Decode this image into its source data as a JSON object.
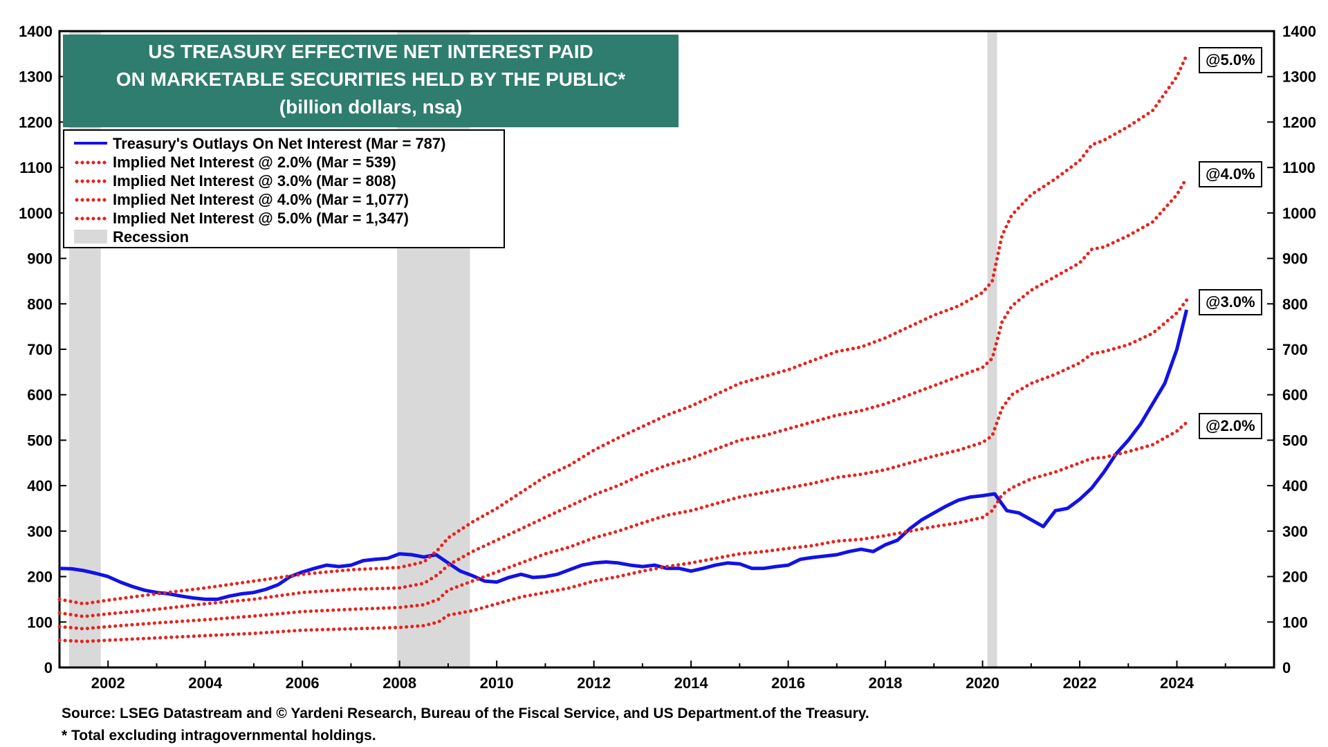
{
  "chart_data": {
    "type": "line",
    "title": "US TREASURY EFFECTIVE NET INTEREST PAID",
    "title_line2": "ON MARKETABLE SECURITIES HELD BY THE PUBLIC*",
    "subtitle": "(billion dollars, nsa)",
    "xlabel": "",
    "ylabel": "",
    "xlim": [
      2001.0,
      2026.0
    ],
    "ylim": [
      0,
      1400
    ],
    "y_ticks": [
      "0",
      "100",
      "200",
      "300",
      "400",
      "500",
      "600",
      "700",
      "800",
      "900",
      "1000",
      "1100",
      "1200",
      "1300",
      "1400"
    ],
    "x_ticks": [
      "2002",
      "2004",
      "2006",
      "2008",
      "2010",
      "2012",
      "2014",
      "2016",
      "2018",
      "2020",
      "2022",
      "2024"
    ],
    "recessions": [
      [
        2001.2,
        2001.85
      ],
      [
        2007.95,
        2009.45
      ],
      [
        2020.1,
        2020.3
      ]
    ],
    "legend": {
      "outlays": "Treasury's Outlays On Net Interest (Mar = 787)",
      "at2": "Implied Net Interest @ 2.0% (Mar = 539)",
      "at3": "Implied Net Interest @ 3.0% (Mar = 808)",
      "at4": "Implied Net Interest @ 4.0% (Mar = 1,077)",
      "at5": "Implied Net Interest @ 5.0% (Mar = 1,347)",
      "recession": "Recession"
    },
    "end_labels": [
      "@5.0%",
      "@4.0%",
      "@3.0%",
      "@2.0%"
    ],
    "series": [
      {
        "name": "Treasury's Outlays On Net Interest",
        "color": "#1212e6",
        "style": "solid",
        "x": [
          2001.0,
          2001.25,
          2001.5,
          2001.75,
          2002.0,
          2002.25,
          2002.5,
          2002.75,
          2003.0,
          2003.25,
          2003.5,
          2003.75,
          2004.0,
          2004.25,
          2004.5,
          2004.75,
          2005.0,
          2005.25,
          2005.5,
          2005.75,
          2006.0,
          2006.25,
          2006.5,
          2006.75,
          2007.0,
          2007.25,
          2007.5,
          2007.75,
          2008.0,
          2008.25,
          2008.5,
          2008.75,
          2009.0,
          2009.25,
          2009.5,
          2009.75,
          2010.0,
          2010.25,
          2010.5,
          2010.75,
          2011.0,
          2011.25,
          2011.5,
          2011.75,
          2012.0,
          2012.25,
          2012.5,
          2012.75,
          2013.0,
          2013.25,
          2013.5,
          2013.75,
          2014.0,
          2014.25,
          2014.5,
          2014.75,
          2015.0,
          2015.25,
          2015.5,
          2015.75,
          2016.0,
          2016.25,
          2016.5,
          2016.75,
          2017.0,
          2017.25,
          2017.5,
          2017.75,
          2018.0,
          2018.25,
          2018.5,
          2018.75,
          2019.0,
          2019.25,
          2019.5,
          2019.75,
          2020.0,
          2020.25,
          2020.5,
          2020.75,
          2021.0,
          2021.25,
          2021.5,
          2021.75,
          2022.0,
          2022.25,
          2022.5,
          2022.75,
          2023.0,
          2023.25,
          2023.5,
          2023.75,
          2024.0,
          2024.2
        ],
        "values": [
          218,
          217,
          213,
          207,
          200,
          188,
          178,
          170,
          165,
          162,
          157,
          153,
          150,
          150,
          157,
          162,
          165,
          172,
          182,
          200,
          210,
          218,
          225,
          222,
          225,
          235,
          238,
          240,
          250,
          248,
          243,
          248,
          230,
          212,
          202,
          190,
          188,
          198,
          205,
          198,
          200,
          205,
          215,
          225,
          230,
          232,
          230,
          225,
          222,
          225,
          218,
          218,
          212,
          218,
          225,
          230,
          228,
          218,
          218,
          222,
          225,
          238,
          242,
          245,
          248,
          255,
          260,
          255,
          270,
          280,
          305,
          325,
          340,
          355,
          368,
          375,
          378,
          382,
          345,
          340,
          325,
          310,
          345,
          350,
          370,
          395,
          430,
          470,
          500,
          535,
          580,
          625,
          700,
          787
        ]
      },
      {
        "name": "Implied Net Interest @ 2.0%",
        "color": "#e8221c",
        "style": "dotted",
        "x": [
          2001.0,
          2001.5,
          2002.0,
          2003.0,
          2004.0,
          2005.0,
          2006.0,
          2007.0,
          2008.0,
          2008.5,
          2008.8,
          2009.0,
          2009.5,
          2010.0,
          2010.5,
          2011.0,
          2011.5,
          2012.0,
          2012.5,
          2013.0,
          2013.5,
          2014.0,
          2014.5,
          2015.0,
          2015.5,
          2016.0,
          2016.5,
          2017.0,
          2017.5,
          2018.0,
          2018.5,
          2019.0,
          2019.5,
          2020.0,
          2020.2,
          2020.4,
          2020.6,
          2021.0,
          2021.5,
          2022.0,
          2022.25,
          2022.5,
          2023.0,
          2023.5,
          2024.0,
          2024.2
        ],
        "values": [
          60,
          57,
          60,
          65,
          70,
          75,
          82,
          85,
          88,
          92,
          100,
          115,
          125,
          140,
          155,
          165,
          175,
          190,
          200,
          212,
          222,
          230,
          240,
          250,
          255,
          262,
          268,
          278,
          282,
          290,
          300,
          310,
          318,
          330,
          345,
          380,
          395,
          415,
          430,
          450,
          460,
          462,
          475,
          490,
          520,
          539
        ]
      },
      {
        "name": "Implied Net Interest @ 3.0%",
        "color": "#e8221c",
        "style": "dotted",
        "x": [
          2001.0,
          2001.5,
          2002.0,
          2003.0,
          2004.0,
          2005.0,
          2006.0,
          2007.0,
          2008.0,
          2008.5,
          2008.8,
          2009.0,
          2009.5,
          2010.0,
          2010.5,
          2011.0,
          2011.5,
          2012.0,
          2012.5,
          2013.0,
          2013.5,
          2014.0,
          2014.5,
          2015.0,
          2015.5,
          2016.0,
          2016.5,
          2017.0,
          2017.5,
          2018.0,
          2018.5,
          2019.0,
          2019.5,
          2020.0,
          2020.2,
          2020.4,
          2020.6,
          2021.0,
          2021.5,
          2022.0,
          2022.25,
          2022.5,
          2023.0,
          2023.5,
          2024.0,
          2024.2
        ],
        "values": [
          90,
          85,
          90,
          98,
          105,
          113,
          123,
          128,
          132,
          138,
          150,
          170,
          190,
          210,
          230,
          250,
          265,
          285,
          300,
          318,
          335,
          345,
          360,
          375,
          385,
          395,
          405,
          418,
          425,
          435,
          450,
          465,
          478,
          495,
          510,
          570,
          600,
          625,
          645,
          670,
          690,
          695,
          710,
          735,
          780,
          808
        ]
      },
      {
        "name": "Implied Net Interest @ 4.0%",
        "color": "#e8221c",
        "style": "dotted",
        "x": [
          2001.0,
          2001.5,
          2002.0,
          2003.0,
          2004.0,
          2005.0,
          2006.0,
          2007.0,
          2008.0,
          2008.5,
          2008.8,
          2009.0,
          2009.5,
          2010.0,
          2010.5,
          2011.0,
          2011.5,
          2012.0,
          2012.5,
          2013.0,
          2013.5,
          2014.0,
          2014.5,
          2015.0,
          2015.5,
          2016.0,
          2016.5,
          2017.0,
          2017.5,
          2018.0,
          2018.5,
          2019.0,
          2019.5,
          2020.0,
          2020.2,
          2020.4,
          2020.6,
          2021.0,
          2021.5,
          2022.0,
          2022.25,
          2022.5,
          2023.0,
          2023.5,
          2024.0,
          2024.2
        ],
        "values": [
          120,
          112,
          118,
          128,
          140,
          150,
          165,
          172,
          175,
          185,
          205,
          225,
          255,
          280,
          305,
          330,
          355,
          380,
          400,
          425,
          445,
          460,
          480,
          500,
          510,
          525,
          540,
          555,
          565,
          580,
          600,
          620,
          640,
          660,
          680,
          760,
          795,
          830,
          860,
          890,
          920,
          925,
          950,
          980,
          1040,
          1077
        ]
      },
      {
        "name": "Implied Net Interest @ 5.0%",
        "color": "#e8221c",
        "style": "dotted",
        "x": [
          2001.0,
          2001.5,
          2002.0,
          2003.0,
          2004.0,
          2005.0,
          2006.0,
          2007.0,
          2008.0,
          2008.5,
          2008.8,
          2009.0,
          2009.5,
          2010.0,
          2010.5,
          2011.0,
          2011.5,
          2012.0,
          2012.5,
          2013.0,
          2013.5,
          2014.0,
          2014.5,
          2015.0,
          2015.5,
          2016.0,
          2016.5,
          2017.0,
          2017.5,
          2018.0,
          2018.5,
          2019.0,
          2019.5,
          2020.0,
          2020.2,
          2020.4,
          2020.6,
          2021.0,
          2021.5,
          2022.0,
          2022.25,
          2022.5,
          2023.0,
          2023.5,
          2024.0,
          2024.2
        ],
        "values": [
          150,
          140,
          148,
          162,
          175,
          190,
          205,
          215,
          220,
          232,
          260,
          285,
          320,
          350,
          385,
          420,
          445,
          478,
          505,
          530,
          555,
          575,
          600,
          625,
          640,
          655,
          675,
          695,
          705,
          725,
          750,
          775,
          795,
          825,
          850,
          950,
          995,
          1040,
          1075,
          1115,
          1150,
          1160,
          1190,
          1225,
          1300,
          1347
        ]
      }
    ]
  },
  "footnotes": {
    "source": "Source: LSEG Datastream and © Yardeni Research, Bureau of the Fiscal Service, and US Department.of the Treasury.",
    "note": "* Total excluding intragovernmental holdings."
  }
}
